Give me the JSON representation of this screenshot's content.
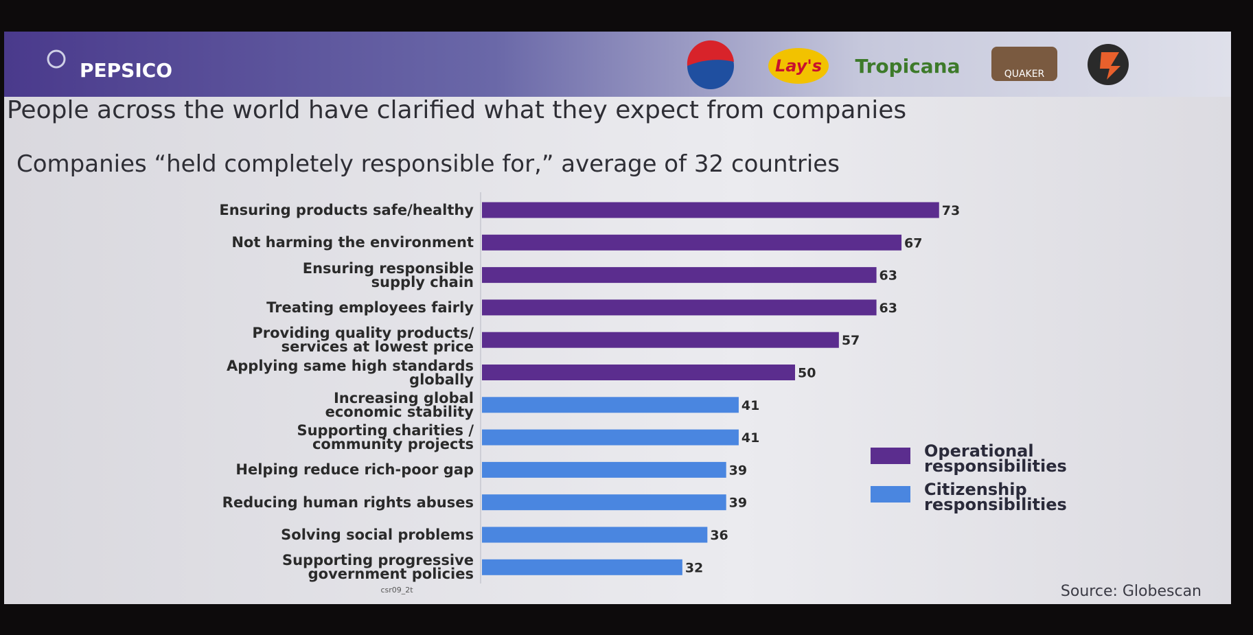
{
  "header": {
    "brand": "PEPSICO",
    "logos": [
      "Lay's",
      "Tropicana",
      "QUAKER"
    ]
  },
  "chart_data": {
    "type": "hbar",
    "title": "People across the world have clarified what they expect from companies",
    "subtitle": "Companies “held completely responsible for,” average of 32 countries",
    "categories": [
      "Ensuring products safe/healthy",
      "Not harming the environment",
      "Ensuring responsible\nsupply chain",
      "Treating employees fairly",
      "Providing quality products/\nservices at lowest price",
      "Applying same high standards\nglobally",
      "Increasing global\neconomic stability",
      "Supporting charities /\ncommunity projects",
      "Helping reduce rich-poor gap",
      "Reducing human rights abuses",
      "Solving social problems",
      "Supporting progressive\ngovernment policies"
    ],
    "series": [
      {
        "name": "Operational\nresponsibilities",
        "color": "#5b2d8e",
        "values": [
          73,
          67,
          63,
          63,
          57,
          50,
          null,
          null,
          null,
          null,
          null,
          null
        ]
      },
      {
        "name": "Citizenship\nresponsibilities",
        "color": "#4a86e0",
        "values": [
          null,
          null,
          null,
          null,
          null,
          null,
          41,
          41,
          39,
          39,
          36,
          32
        ]
      }
    ],
    "source": "Source:  Globescan",
    "footnote": "csr09_2t"
  }
}
